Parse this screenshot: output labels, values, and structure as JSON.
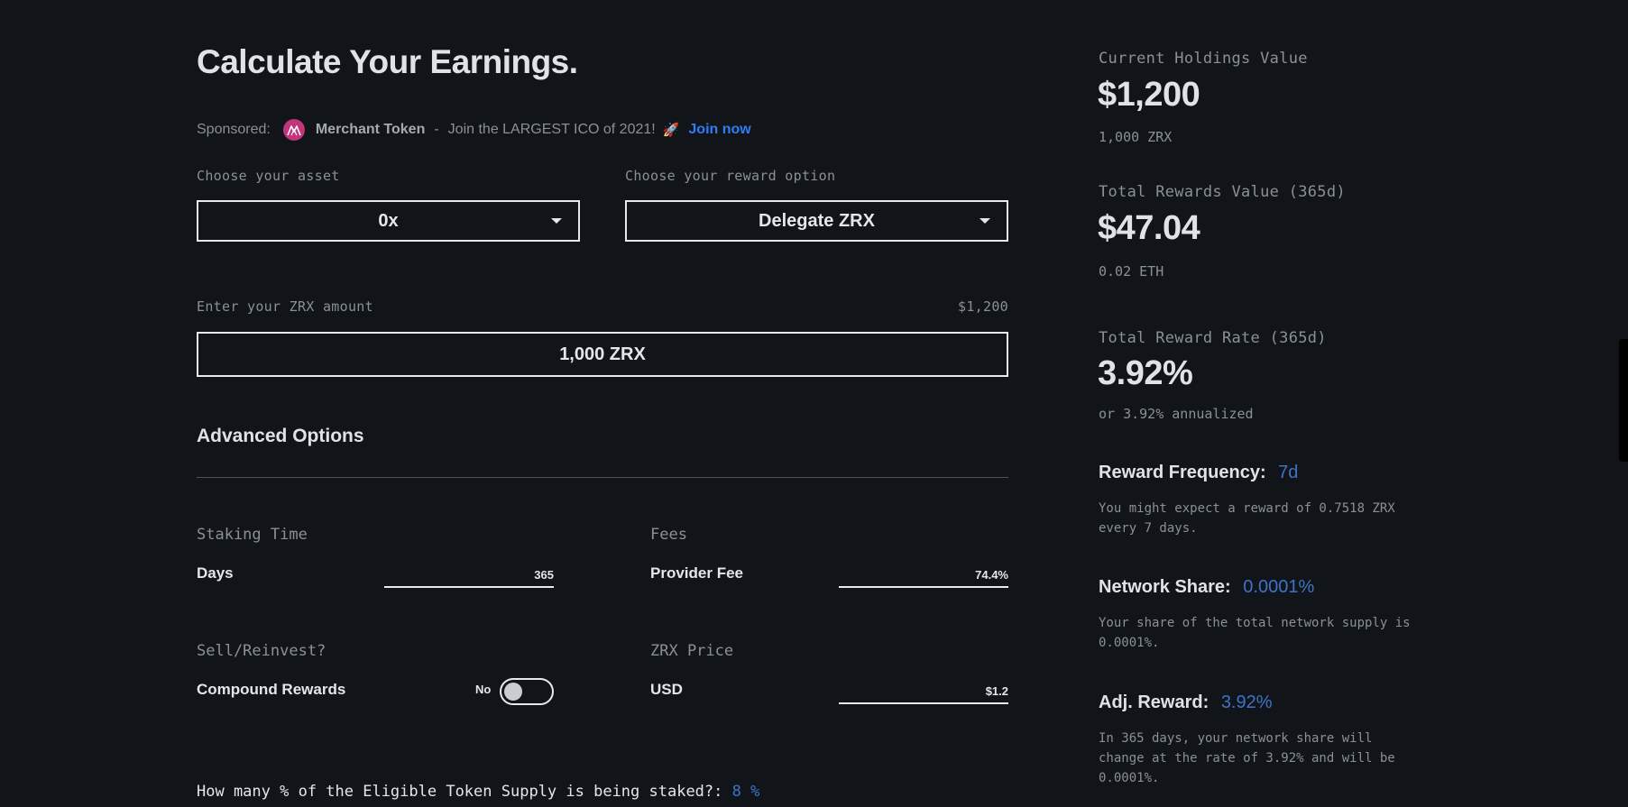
{
  "header": {
    "title": "Calculate Your Earnings."
  },
  "sponsor": {
    "prefix": "Sponsored:",
    "token_name": "Merchant Token",
    "separator": "-",
    "message": "Join the LARGEST ICO of 2021!",
    "emoji": "🚀",
    "cta": "Join now"
  },
  "asset": {
    "label": "Choose your asset",
    "value": "0x"
  },
  "reward_option": {
    "label": "Choose your reward option",
    "value": "Delegate ZRX"
  },
  "amount": {
    "label": "Enter your ZRX amount",
    "usd_value": "$1,200",
    "value": "1,000 ZRX"
  },
  "advanced": {
    "title": "Advanced Options",
    "staking_time": {
      "section": "Staking Time",
      "label": "Days",
      "value": "365"
    },
    "fees": {
      "section": "Fees",
      "label": "Provider Fee",
      "value": "74.4%"
    },
    "sell_reinvest": {
      "section": "Sell/Reinvest?",
      "label": "Compound Rewards",
      "toggle_text": "No"
    },
    "price": {
      "section": "ZRX Price",
      "label": "USD",
      "value": "$1.2"
    }
  },
  "question": {
    "text": "How many % of the Eligible Token Supply is being staked?:",
    "value": "8 %"
  },
  "summary": {
    "holdings": {
      "label": "Current Holdings Value",
      "value": "$1,200",
      "sub": "1,000 ZRX"
    },
    "rewards": {
      "label": "Total Rewards Value (365d)",
      "value": "$47.04",
      "sub": "0.02 ETH"
    },
    "rate": {
      "label": "Total Reward Rate (365d)",
      "value": "3.92%",
      "sub": "or 3.92% annualized"
    },
    "frequency": {
      "label": "Reward Frequency:",
      "value": "7d",
      "desc": "You might expect a reward of 0.7518 ZRX every 7 days."
    },
    "network_share": {
      "label": "Network Share:",
      "value": "0.0001%",
      "desc": "Your share of the total network supply is 0.0001%."
    },
    "adj_reward": {
      "label": "Adj. Reward:",
      "value": "3.92%",
      "desc": "In 365 days, your network share will change at the rate of 3.92% and will be 0.0001%."
    }
  },
  "colors": {
    "background": "#111519",
    "accent_blue": "#3d74c7",
    "link_blue": "#2f7df6",
    "sponsor_logo": "#c2357b"
  }
}
